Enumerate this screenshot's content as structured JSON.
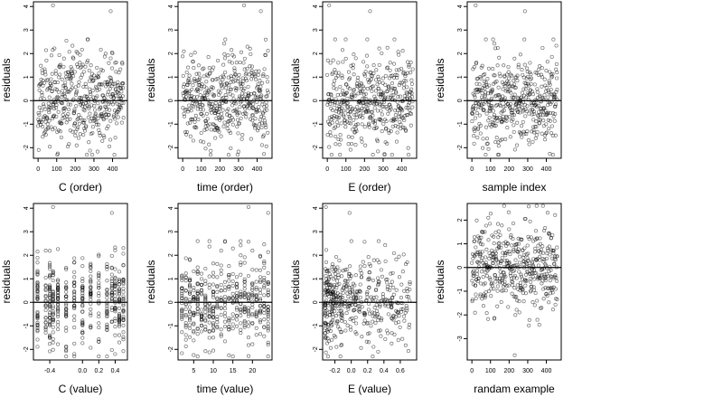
{
  "figure": {
    "layout": "2 rows x 4 columns of residual scatter plots",
    "background": "#ffffff",
    "point_color": "#000000",
    "point_style": "open-circle"
  },
  "chart_data": [
    {
      "type": "scatter",
      "xlabel": "C (order)",
      "ylabel": "residuals",
      "xlim": [
        -25,
        480
      ],
      "ylim": [
        -2.45,
        4.2
      ],
      "xticks": [
        0,
        100,
        200,
        300,
        400
      ],
      "xticklabels": [
        "0",
        "100",
        "200",
        "300",
        "400"
      ],
      "yticks": [
        -2,
        -1,
        0,
        1,
        2,
        3,
        4
      ],
      "yticklabels": [
        "-2",
        "-1",
        "0",
        "1",
        "2",
        "3",
        "4"
      ],
      "reference_line_y": 0,
      "n_points": 460,
      "x_kind": "order",
      "seed": 11,
      "outliers": [
        {
          "x": 80,
          "y": 4.05
        },
        {
          "x": 390,
          "y": 3.8
        }
      ]
    },
    {
      "type": "scatter",
      "xlabel": "time (order)",
      "ylabel": "residuals",
      "xlim": [
        -25,
        480
      ],
      "ylim": [
        -2.45,
        4.2
      ],
      "xticks": [
        0,
        100,
        200,
        300,
        400
      ],
      "xticklabels": [
        "0",
        "100",
        "200",
        "300",
        "400"
      ],
      "yticks": [
        -2,
        -1,
        0,
        1,
        2,
        3,
        4
      ],
      "yticklabels": [
        "-2",
        "-1",
        "0",
        "1",
        "2",
        "3",
        "4"
      ],
      "reference_line_y": 0,
      "n_points": 460,
      "x_kind": "order",
      "seed": 23,
      "outliers": [
        {
          "x": 330,
          "y": 4.05
        },
        {
          "x": 420,
          "y": 3.8
        }
      ]
    },
    {
      "type": "scatter",
      "xlabel": "E (order)",
      "ylabel": "residuals",
      "xlim": [
        -25,
        480
      ],
      "ylim": [
        -2.45,
        4.2
      ],
      "xticks": [
        0,
        100,
        200,
        300,
        400
      ],
      "xticklabels": [
        "0",
        "100",
        "200",
        "300",
        "400"
      ],
      "yticks": [
        -2,
        -1,
        0,
        1,
        2,
        3,
        4
      ],
      "yticklabels": [
        "-2",
        "-1",
        "0",
        "1",
        "2",
        "3",
        "4"
      ],
      "reference_line_y": 0,
      "n_points": 460,
      "x_kind": "order",
      "seed": 37,
      "outliers": [
        {
          "x": 10,
          "y": 4.05
        },
        {
          "x": 230,
          "y": 3.8
        }
      ]
    },
    {
      "type": "scatter",
      "xlabel": "sample index",
      "ylabel": "residuals",
      "xlim": [
        -25,
        480
      ],
      "ylim": [
        -2.45,
        4.2
      ],
      "xticks": [
        0,
        100,
        200,
        300,
        400
      ],
      "xticklabels": [
        "0",
        "100",
        "200",
        "300",
        "400"
      ],
      "yticks": [
        -2,
        -1,
        0,
        1,
        2,
        3,
        4
      ],
      "yticklabels": [
        "-2",
        "-1",
        "0",
        "1",
        "2",
        "3",
        "4"
      ],
      "reference_line_y": 0,
      "n_points": 460,
      "x_kind": "order",
      "seed": 41,
      "outliers": [
        {
          "x": 20,
          "y": 4.05
        },
        {
          "x": 285,
          "y": 3.8
        }
      ]
    },
    {
      "type": "scatter",
      "xlabel": "C (value)",
      "ylabel": "residuals",
      "xlim": [
        -0.6,
        0.55
      ],
      "ylim": [
        -2.45,
        4.2
      ],
      "xticks": [
        -0.4,
        0.0,
        0.2,
        0.4
      ],
      "xticklabels": [
        "-0.4",
        "0.0",
        "0.2",
        "0.4"
      ],
      "yticks": [
        -2,
        -1,
        0,
        1,
        2,
        3,
        4
      ],
      "yticklabels": [
        "-2",
        "-1",
        "0",
        "1",
        "2",
        "3",
        "4"
      ],
      "reference_line_y": 0,
      "n_points": 460,
      "x_kind": "discrete",
      "x_values": [
        -0.55,
        -0.45,
        -0.4,
        -0.36,
        -0.3,
        -0.2,
        -0.1,
        0.0,
        0.1,
        0.2,
        0.3,
        0.36,
        0.4,
        0.45,
        0.5
      ],
      "seed": 53,
      "outliers": [
        {
          "x": -0.36,
          "y": 4.05
        },
        {
          "x": 0.36,
          "y": 3.8
        }
      ]
    },
    {
      "type": "scatter",
      "xlabel": "time (value)",
      "ylabel": "residuals",
      "xlim": [
        1,
        25
      ],
      "ylim": [
        -2.45,
        4.2
      ],
      "xticks": [
        5,
        10,
        15,
        20
      ],
      "xticklabels": [
        "5",
        "10",
        "15",
        "20"
      ],
      "yticks": [
        -2,
        -1,
        0,
        1,
        2,
        3,
        4
      ],
      "yticklabels": [
        "-2",
        "-1",
        "0",
        "1",
        "2",
        "3",
        "4"
      ],
      "reference_line_y": 0,
      "n_points": 460,
      "x_kind": "discrete",
      "x_values": [
        2,
        3,
        4,
        5,
        6,
        7,
        8,
        9,
        10,
        11,
        12,
        13,
        14,
        15,
        16,
        17,
        18,
        19,
        20,
        21,
        22,
        23,
        24
      ],
      "seed": 67,
      "outliers": [
        {
          "x": 19,
          "y": 4.05
        },
        {
          "x": 24,
          "y": 3.8
        }
      ]
    },
    {
      "type": "scatter",
      "xlabel": "E (value)",
      "ylabel": "residuals",
      "xlim": [
        -0.35,
        0.8
      ],
      "ylim": [
        -2.45,
        4.2
      ],
      "xticks": [
        -0.2,
        0.0,
        0.2,
        0.4,
        0.6
      ],
      "xticklabels": [
        "-0.2",
        "0.0",
        "0.2",
        "0.4",
        "0.6"
      ],
      "yticks": [
        -2,
        -1,
        0,
        1,
        2,
        3,
        4
      ],
      "yticklabels": [
        "-2",
        "-1",
        "0",
        "1",
        "2",
        "3",
        "4"
      ],
      "reference_line_y": 0,
      "n_points": 460,
      "x_kind": "skewed",
      "skew_range": [
        -0.32,
        0.72
      ],
      "seed": 79,
      "outliers": [
        {
          "x": -0.31,
          "y": 4.05
        },
        {
          "x": -0.02,
          "y": 3.8
        }
      ]
    },
    {
      "type": "scatter",
      "xlabel": "randam example",
      "ylabel": "residuals",
      "xlim": [
        -25,
        480
      ],
      "ylim": [
        -3.9,
        2.7
      ],
      "xticks": [
        0,
        100,
        200,
        300,
        400
      ],
      "xticklabels": [
        "0",
        "100",
        "200",
        "300",
        "400"
      ],
      "yticks": [
        -3,
        -2,
        -1,
        0,
        1,
        2
      ],
      "yticklabels": [
        "-3",
        "-2",
        "-1",
        "0",
        "1",
        "2"
      ],
      "reference_line_y": 0,
      "n_points": 460,
      "x_kind": "order",
      "seed": 97,
      "outliers": [
        {
          "x": 230,
          "y": -3.7
        }
      ]
    }
  ]
}
